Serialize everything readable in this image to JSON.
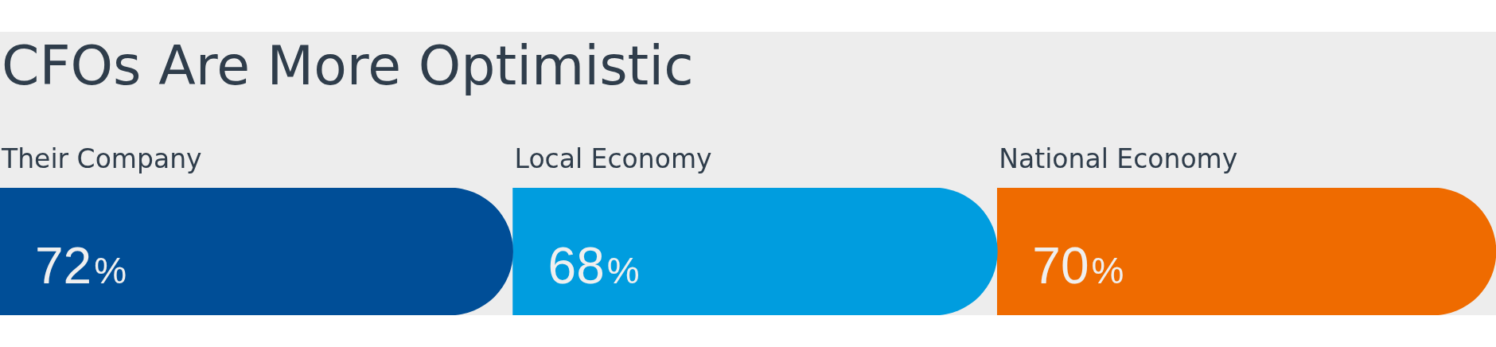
{
  "chart_data": {
    "type": "bar",
    "title": "CFOs Are More Optimistic",
    "orientation": "horizontal",
    "stacked": true,
    "categories": [
      null
    ],
    "xlim": [
      0,
      210
    ],
    "tick_labels": false,
    "series": [
      {
        "name": "Their Company",
        "color": "#004e97",
        "values": [
          72
        ],
        "value_labels": [
          "72%"
        ]
      },
      {
        "name": "Local Economy",
        "color": "#009ddf",
        "values": [
          68
        ],
        "value_labels": [
          "68%"
        ]
      },
      {
        "name": "National Economy",
        "color": "#ef6b00",
        "values": [
          70
        ],
        "value_labels": [
          "70%"
        ]
      }
    ]
  }
}
